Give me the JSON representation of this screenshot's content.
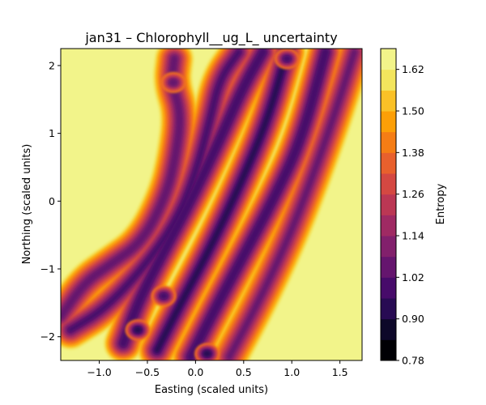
{
  "chart_data": {
    "type": "contourf",
    "title": "jan31 – Chlorophyll__ug_L_ uncertainty",
    "xlabel": "Easting (scaled units)",
    "ylabel": "Northing (scaled units)",
    "xlim": [
      -1.4,
      1.73
    ],
    "ylim": [
      -2.35,
      2.25
    ],
    "xticks": [
      -1.0,
      -0.5,
      0.0,
      0.5,
      1.0,
      1.5
    ],
    "xtick_labels": [
      "−1.0",
      "−0.5",
      "0.0",
      "0.5",
      "1.0",
      "1.5"
    ],
    "yticks": [
      -2,
      -1,
      0,
      1,
      2
    ],
    "ytick_labels": [
      "−2",
      "−1",
      "0",
      "1",
      "2"
    ],
    "colormap": "inferno",
    "colorbar": {
      "label": "Entropy",
      "range": [
        0.78,
        1.68
      ],
      "levels": [
        0.78,
        0.84,
        0.9,
        0.96,
        1.02,
        1.08,
        1.14,
        1.2,
        1.26,
        1.32,
        1.38,
        1.44,
        1.5,
        1.56,
        1.62,
        1.68
      ],
      "ticks": [
        0.78,
        0.9,
        1.02,
        1.14,
        1.26,
        1.38,
        1.5,
        1.62
      ],
      "tick_labels": [
        "0.78",
        "0.90",
        "1.02",
        "1.14",
        "1.26",
        "1.38",
        "1.50",
        "1.62"
      ],
      "colors": [
        "#000004",
        "#0d0829",
        "#280b53",
        "#470b6a",
        "#65156e",
        "#82206c",
        "#9f2a63",
        "#bb3754",
        "#d44842",
        "#e8602d",
        "#f57d15",
        "#fc9f07",
        "#fac127",
        "#f3e55d",
        "#f2f48a"
      ]
    },
    "background_value": 1.68,
    "tracks": [
      {
        "name": "",
        "x": [
          -1.4,
          -1.15,
          -0.9,
          -0.55,
          -0.3,
          -0.2,
          -0.15,
          -0.25,
          -0.22
        ],
        "y": [
          -1.7,
          -1.2,
          -0.95,
          -0.6,
          0.1,
          0.7,
          1.3,
          1.75,
          2.1
        ],
        "min_value": 1.05
      },
      {
        "name": "",
        "x": [
          -1.3,
          -0.95,
          -0.55,
          -0.2,
          0.0,
          0.15,
          0.25,
          0.45
        ],
        "y": [
          -1.9,
          -1.6,
          -1.0,
          -0.3,
          0.4,
          1.2,
          1.8,
          2.2
        ],
        "min_value": 1.02
      },
      {
        "name": "",
        "x": [
          -0.75,
          -0.6,
          -0.35,
          -0.05,
          0.25,
          0.5,
          0.7
        ],
        "y": [
          -2.1,
          -1.5,
          -0.8,
          0.0,
          0.9,
          1.7,
          2.2
        ],
        "min_value": 0.97
      },
      {
        "name": "",
        "x": [
          -0.4,
          -0.15,
          0.15,
          0.45,
          0.75,
          0.95
        ],
        "y": [
          -2.2,
          -1.5,
          -0.7,
          0.2,
          1.2,
          2.2
        ],
        "min_value": 0.96
      },
      {
        "name": "",
        "x": [
          -0.05,
          0.2,
          0.5,
          0.8,
          1.1,
          1.35
        ],
        "y": [
          -2.3,
          -1.6,
          -0.8,
          0.0,
          0.9,
          2.2
        ],
        "min_value": 0.97
      },
      {
        "name": "",
        "x": [
          0.35,
          0.65,
          0.95,
          1.2,
          1.45,
          1.65
        ],
        "y": [
          -2.3,
          -1.5,
          -0.6,
          0.3,
          1.3,
          2.2
        ],
        "min_value": 1.08
      }
    ],
    "minima": [
      {
        "x": -0.6,
        "y": -1.9,
        "value": 0.96
      },
      {
        "x": -0.33,
        "y": -1.4,
        "value": 0.97
      },
      {
        "x": 0.12,
        "y": -2.25,
        "value": 0.92
      },
      {
        "x": -0.23,
        "y": 1.75,
        "value": 1.04
      },
      {
        "x": 0.95,
        "y": 2.1,
        "value": 1.02
      }
    ],
    "grid": false,
    "legend": "none"
  }
}
